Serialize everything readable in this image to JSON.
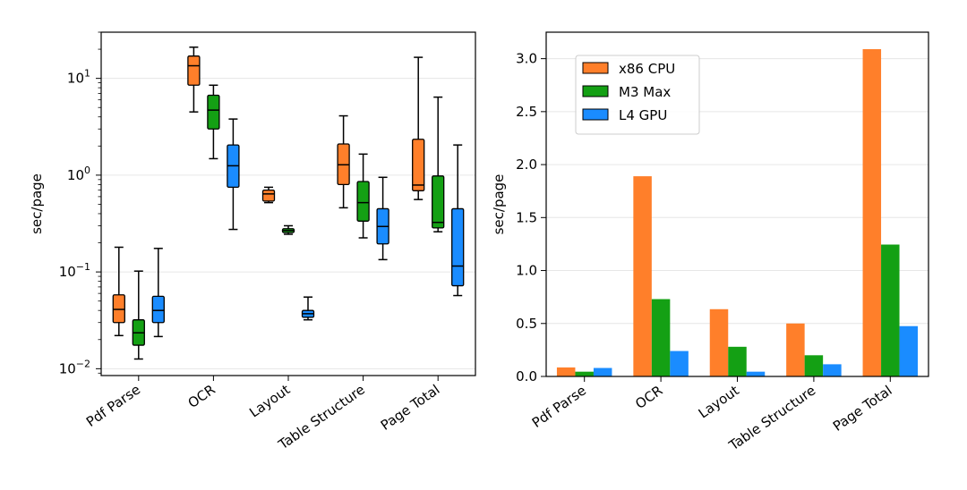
{
  "chart_data": [
    {
      "type": "box",
      "scale": "log",
      "ylabel": "sec/page",
      "ylim": [
        0.0085,
        30
      ],
      "yticks": [
        {
          "value": 0.01,
          "base": "10",
          "exp": "−2"
        },
        {
          "value": 0.1,
          "base": "10",
          "exp": "−1"
        },
        {
          "value": 1,
          "base": "10",
          "exp": "0"
        },
        {
          "value": 10,
          "base": "10",
          "exp": "1"
        }
      ],
      "grid": "y",
      "categories": [
        "Pdf Parse",
        "OCR",
        "Layout",
        "Table Structure",
        "Page Total"
      ],
      "series": [
        {
          "color": "#ff7f2a",
          "boxes": [
            {
              "whislo": 0.022,
              "q1": 0.03,
              "med": 0.041,
              "q3": 0.058,
              "whishi": 0.18
            },
            {
              "whislo": 4.5,
              "q1": 8.5,
              "med": 13.5,
              "q3": 17.0,
              "whishi": 21.0
            },
            {
              "whislo": 0.52,
              "q1": 0.54,
              "med": 0.64,
              "q3": 0.7,
              "whishi": 0.75
            },
            {
              "whislo": 0.46,
              "q1": 0.8,
              "med": 1.28,
              "q3": 2.1,
              "whishi": 4.1
            },
            {
              "whislo": 0.56,
              "q1": 0.69,
              "med": 0.79,
              "q3": 2.35,
              "whishi": 16.5
            }
          ]
        },
        {
          "color": "#14a014",
          "boxes": [
            {
              "whislo": 0.0126,
              "q1": 0.0175,
              "med": 0.0235,
              "q3": 0.032,
              "whishi": 0.102
            },
            {
              "whislo": 1.48,
              "q1": 3.0,
              "med": 4.7,
              "q3": 6.7,
              "whishi": 8.5
            },
            {
              "whislo": 0.245,
              "q1": 0.255,
              "med": 0.268,
              "q3": 0.28,
              "whishi": 0.3
            },
            {
              "whislo": 0.225,
              "q1": 0.335,
              "med": 0.52,
              "q3": 0.86,
              "whishi": 1.65
            },
            {
              "whislo": 0.26,
              "q1": 0.285,
              "med": 0.325,
              "q3": 0.98,
              "whishi": 6.4
            }
          ]
        },
        {
          "color": "#1a8cff",
          "boxes": [
            {
              "whislo": 0.0215,
              "q1": 0.03,
              "med": 0.04,
              "q3": 0.056,
              "whishi": 0.175
            },
            {
              "whislo": 0.275,
              "q1": 0.75,
              "med": 1.25,
              "q3": 2.05,
              "whishi": 3.8
            },
            {
              "whislo": 0.032,
              "q1": 0.034,
              "med": 0.037,
              "q3": 0.04,
              "whishi": 0.055
            },
            {
              "whislo": 0.134,
              "q1": 0.195,
              "med": 0.295,
              "q3": 0.45,
              "whishi": 0.95
            },
            {
              "whislo": 0.057,
              "q1": 0.072,
              "med": 0.115,
              "q3": 0.45,
              "whishi": 2.05
            }
          ]
        }
      ]
    },
    {
      "type": "bar",
      "ylabel": "sec/page",
      "ylim": [
        0,
        3.25
      ],
      "yticks": [
        "0.0",
        "0.5",
        "1.0",
        "1.5",
        "2.0",
        "2.5",
        "3.0"
      ],
      "grid": "y",
      "legend": "top-left",
      "categories": [
        "Pdf Parse",
        "OCR",
        "Layout",
        "Table Structure",
        "Page Total"
      ],
      "series": [
        {
          "name": "x86 CPU",
          "color": "#ff7f2a",
          "values": [
            0.085,
            1.89,
            0.635,
            0.5,
            3.09
          ]
        },
        {
          "name": "M3 Max",
          "color": "#14a014",
          "values": [
            0.045,
            0.73,
            0.28,
            0.2,
            1.245
          ]
        },
        {
          "name": "L4 GPU",
          "color": "#1a8cff",
          "values": [
            0.08,
            0.24,
            0.045,
            0.115,
            0.475
          ]
        }
      ]
    }
  ]
}
